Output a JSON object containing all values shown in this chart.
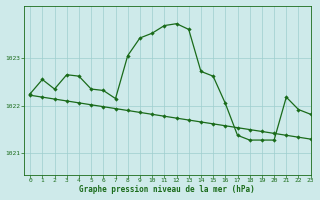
{
  "title": "Graphe pression niveau de la mer (hPa)",
  "bg_color": "#ceeaea",
  "line_color": "#1a6b1a",
  "grid_color": "#9ecece",
  "text_color": "#1a6b1a",
  "xlim": [
    -0.5,
    23
  ],
  "ylim": [
    1020.55,
    1024.1
  ],
  "yticks": [
    1021,
    1022,
    1023
  ],
  "xticks": [
    0,
    1,
    2,
    3,
    4,
    5,
    6,
    7,
    8,
    9,
    10,
    11,
    12,
    13,
    14,
    15,
    16,
    17,
    18,
    19,
    20,
    21,
    22,
    23
  ],
  "series1_x": [
    0,
    1,
    2,
    3,
    4,
    5,
    6,
    7,
    8,
    9,
    10,
    11,
    12,
    13,
    14,
    15,
    16,
    17,
    18,
    19,
    20,
    21,
    22,
    23
  ],
  "series1_y": [
    1022.25,
    1022.55,
    1022.35,
    1022.65,
    1022.62,
    1022.35,
    1022.32,
    1022.15,
    1023.05,
    1023.42,
    1023.52,
    1023.68,
    1023.72,
    1023.6,
    1022.72,
    1022.62,
    1022.05,
    1021.38,
    1021.28,
    1021.28,
    1021.28,
    1022.18,
    1021.92,
    1021.82
  ],
  "series2_x": [
    0,
    1,
    2,
    3,
    4,
    5,
    6,
    7,
    8,
    9,
    10,
    11,
    12,
    13,
    14,
    15,
    16,
    17,
    18,
    19,
    20,
    21,
    22,
    23
  ],
  "series2_y": [
    1022.22,
    1022.18,
    1022.14,
    1022.1,
    1022.06,
    1022.02,
    1021.98,
    1021.94,
    1021.9,
    1021.86,
    1021.82,
    1021.78,
    1021.74,
    1021.7,
    1021.66,
    1021.62,
    1021.58,
    1021.54,
    1021.5,
    1021.46,
    1021.42,
    1021.38,
    1021.34,
    1021.3
  ]
}
